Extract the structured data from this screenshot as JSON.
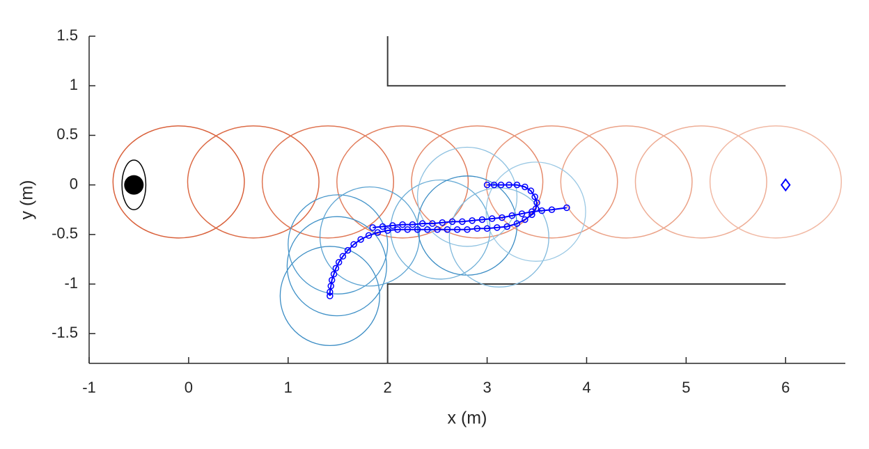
{
  "chart_data": {
    "type": "line",
    "xlabel": "x (m)",
    "ylabel": "y (m)",
    "xlim": [
      -1,
      6.6
    ],
    "ylim": [
      -1.8,
      1.5
    ],
    "xticks": [
      -1,
      0,
      1,
      2,
      3,
      4,
      5,
      6
    ],
    "yticks": [
      -1.5,
      -1,
      -0.5,
      0,
      0.5,
      1,
      1.5
    ],
    "walls": [
      {
        "x": [
          2,
          2,
          6
        ],
        "y": [
          1.5,
          1,
          1
        ],
        "color": "#3a3a3a"
      },
      {
        "x": [
          2,
          2,
          6
        ],
        "y": [
          -1.8,
          -1,
          -1
        ],
        "color": "#3a3a3a"
      }
    ],
    "ellipses": [
      {
        "x": -0.1,
        "y": 0.03,
        "rx": 0.66,
        "ry": 0.565,
        "color": "#d9603a"
      },
      {
        "x": 0.65,
        "y": 0.03,
        "rx": 0.66,
        "ry": 0.565,
        "color": "#dc6a45"
      },
      {
        "x": 1.4,
        "y": 0.03,
        "rx": 0.66,
        "ry": 0.565,
        "color": "#df7451"
      },
      {
        "x": 2.15,
        "y": 0.03,
        "rx": 0.66,
        "ry": 0.565,
        "color": "#e27f5e"
      },
      {
        "x": 2.9,
        "y": 0.03,
        "rx": 0.66,
        "ry": 0.565,
        "color": "#e58a6b"
      },
      {
        "x": 3.65,
        "y": 0.03,
        "rx": 0.66,
        "ry": 0.565,
        "color": "#e89679"
      },
      {
        "x": 4.4,
        "y": 0.03,
        "rx": 0.66,
        "ry": 0.565,
        "color": "#eba287"
      },
      {
        "x": 5.15,
        "y": 0.03,
        "rx": 0.66,
        "ry": 0.565,
        "color": "#eead95"
      },
      {
        "x": 5.9,
        "y": 0.03,
        "rx": 0.66,
        "ry": 0.565,
        "color": "#f1b9a4"
      }
    ],
    "footprints": [
      {
        "x": 1.42,
        "y": -1.12,
        "r": 0.5,
        "color": "#3a8cc4"
      },
      {
        "x": 1.49,
        "y": -0.82,
        "r": 0.5,
        "color": "#3e90c7"
      },
      {
        "x": 1.5,
        "y": -0.6,
        "r": 0.5,
        "color": "#4595ca"
      },
      {
        "x": 1.82,
        "y": -0.52,
        "r": 0.5,
        "color": "#5aa2d1"
      },
      {
        "x": 2.53,
        "y": -0.45,
        "r": 0.5,
        "color": "#6badd6"
      },
      {
        "x": 2.8,
        "y": -0.41,
        "r": 0.5,
        "color": "#3a8cc4"
      },
      {
        "x": 2.8,
        "y": -0.12,
        "r": 0.5,
        "color": "#8cc0e0"
      },
      {
        "x": 3.12,
        "y": -0.53,
        "r": 0.5,
        "color": "#7fb8dc"
      },
      {
        "x": 3.49,
        "y": -0.27,
        "r": 0.5,
        "color": "#9ac8e4"
      }
    ],
    "series": [
      {
        "color": "#0000ff",
        "x": [
          1.42,
          1.42,
          1.43,
          1.44,
          1.46,
          1.48,
          1.51,
          1.55,
          1.6,
          1.66,
          1.73,
          1.81,
          1.9,
          2.0,
          2.1,
          2.2,
          2.3,
          2.4,
          2.5,
          2.6,
          2.7,
          2.8,
          2.9,
          3.0,
          3.1,
          3.2,
          3.3,
          3.38,
          3.45,
          3.49,
          3.5,
          3.48,
          3.44,
          3.38,
          3.3,
          3.22,
          3.14,
          3.07,
          3.0
        ],
        "y": [
          -1.12,
          -1.08,
          -1.02,
          -0.96,
          -0.9,
          -0.84,
          -0.78,
          -0.72,
          -0.66,
          -0.6,
          -0.55,
          -0.51,
          -0.48,
          -0.46,
          -0.45,
          -0.45,
          -0.45,
          -0.45,
          -0.45,
          -0.45,
          -0.45,
          -0.45,
          -0.44,
          -0.44,
          -0.43,
          -0.42,
          -0.39,
          -0.35,
          -0.3,
          -0.24,
          -0.18,
          -0.12,
          -0.06,
          -0.02,
          0,
          0,
          0,
          0,
          0
        ]
      },
      {
        "color": "#0000ff",
        "x": [
          1.85,
          1.95,
          2.05,
          2.15,
          2.25,
          2.35,
          2.45,
          2.55,
          2.65,
          2.75,
          2.85,
          2.95,
          3.05,
          3.15,
          3.25,
          3.35,
          3.45,
          3.55,
          3.65,
          3.8
        ],
        "y": [
          -0.43,
          -0.42,
          -0.41,
          -0.4,
          -0.4,
          -0.39,
          -0.39,
          -0.38,
          -0.37,
          -0.37,
          -0.36,
          -0.35,
          -0.34,
          -0.33,
          -0.31,
          -0.29,
          -0.27,
          -0.26,
          -0.25,
          -0.23
        ]
      }
    ],
    "start": {
      "x": -0.55,
      "y": 0,
      "rx": 0.12,
      "ry": 0.25,
      "color": "#000000"
    },
    "goal": {
      "x": 6,
      "y": 0,
      "color": "#0000ff"
    }
  }
}
